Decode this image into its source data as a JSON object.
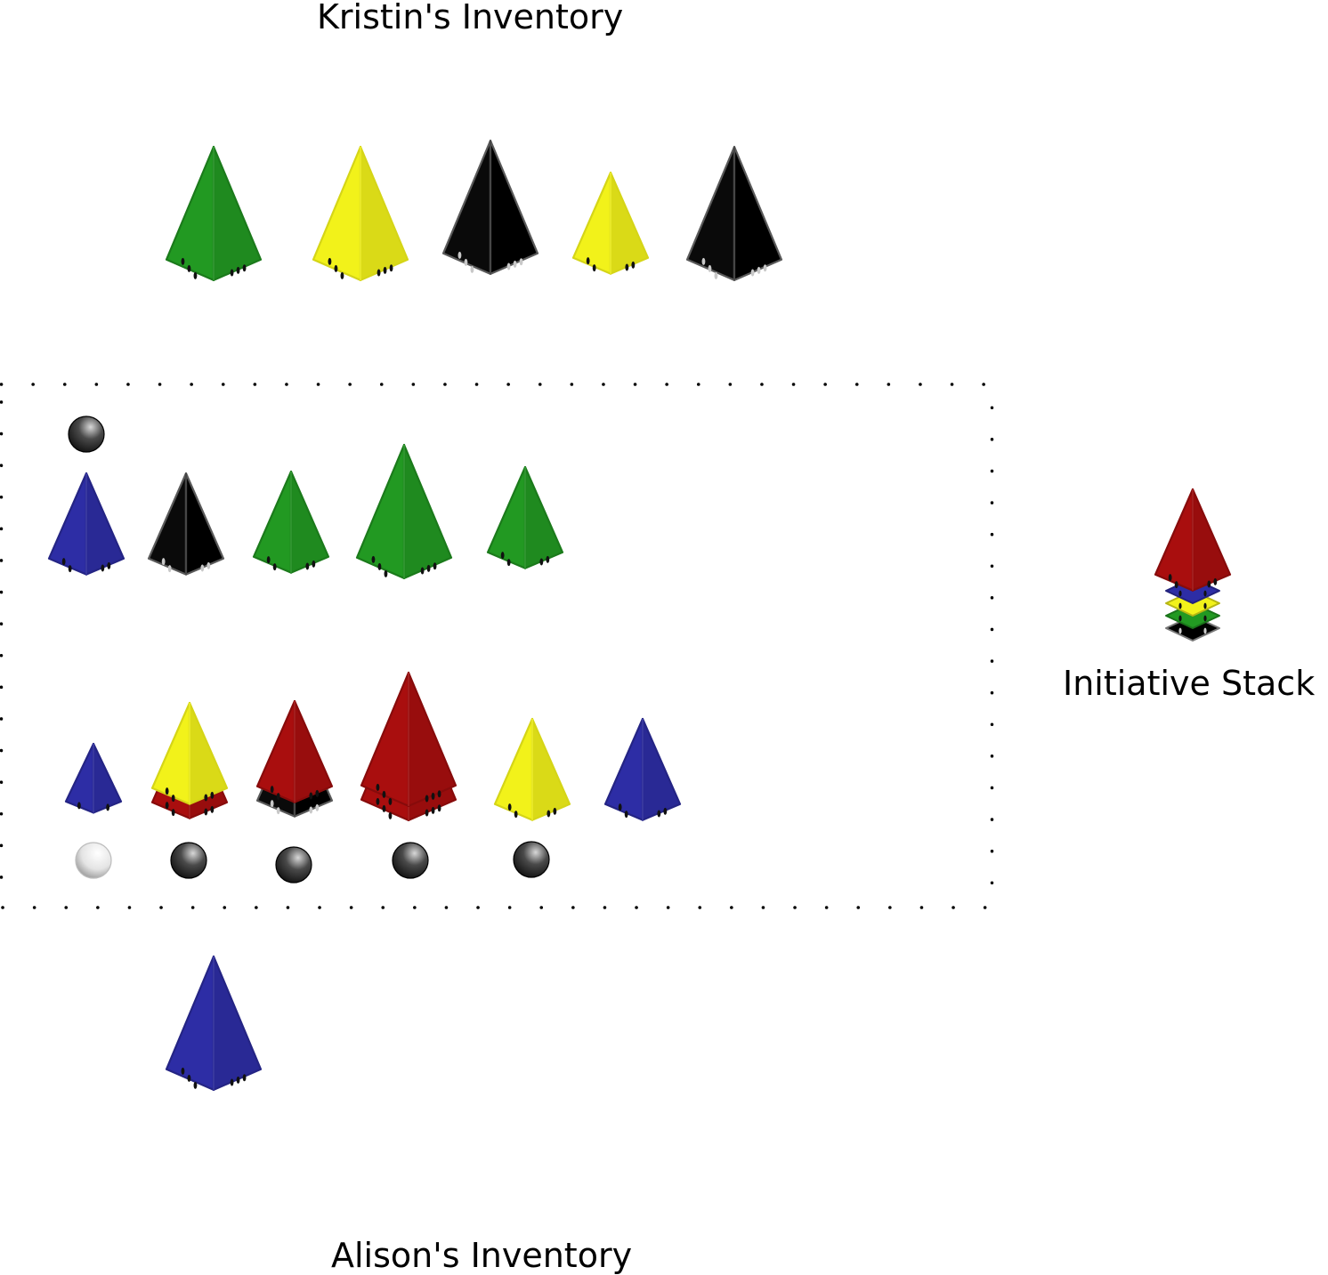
{
  "labels": {
    "top_player": "Kristin's Inventory",
    "bottom_player": "Alison's Inventory",
    "initiative": "Initiative Stack"
  },
  "colors": {
    "green": "#229922",
    "yellow": "#f2f21a",
    "black": "#050505",
    "blue": "#2d2da5",
    "red": "#a90e0e",
    "board_border": "#000000"
  },
  "kristin_inventory": [
    {
      "color": "green",
      "pips": 3
    },
    {
      "color": "yellow",
      "pips": 3
    },
    {
      "color": "black",
      "pips": 3
    },
    {
      "color": "yellow",
      "pips": 2
    },
    {
      "color": "black",
      "pips": 3
    }
  ],
  "alison_inventory": [
    {
      "color": "blue",
      "pips": 3
    }
  ],
  "board": {
    "upper_row": {
      "ships": [
        {
          "stack": [
            {
              "color": "blue",
              "pips": 2
            }
          ],
          "marker": "dark"
        },
        {
          "stack": [
            {
              "color": "black",
              "pips": 2
            }
          ],
          "marker": null
        },
        {
          "stack": [
            {
              "color": "green",
              "pips": 2
            }
          ],
          "marker": null
        },
        {
          "stack": [
            {
              "color": "green",
              "pips": 3
            }
          ],
          "marker": null
        },
        {
          "stack": [
            {
              "color": "green",
              "pips": 2
            }
          ],
          "marker": null
        }
      ]
    },
    "lower_row": {
      "ships": [
        {
          "stack": [
            {
              "color": "blue",
              "pips": 1
            }
          ],
          "marker": "light"
        },
        {
          "stack": [
            {
              "color": "red",
              "pips": 2
            },
            {
              "color": "yellow",
              "pips": 2
            }
          ],
          "marker": "dark"
        },
        {
          "stack": [
            {
              "color": "black",
              "pips": 2
            },
            {
              "color": "red",
              "pips": 2
            }
          ],
          "marker": "dark"
        },
        {
          "stack": [
            {
              "color": "red",
              "pips": 3
            },
            {
              "color": "red",
              "pips": 3
            }
          ],
          "marker": "dark"
        },
        {
          "stack": [
            {
              "color": "yellow",
              "pips": 2
            }
          ],
          "marker": "dark"
        },
        {
          "stack": [
            {
              "color": "blue",
              "pips": 2
            }
          ],
          "marker": null
        }
      ]
    }
  },
  "initiative_stack": [
    "black",
    "green",
    "yellow",
    "blue",
    "red"
  ]
}
